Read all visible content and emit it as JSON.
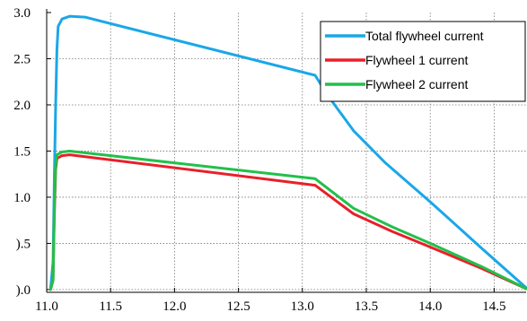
{
  "chart_data": {
    "type": "line",
    "title": "",
    "xlabel": "",
    "ylabel": "",
    "xlim": [
      11.0,
      14.75
    ],
    "ylim": [
      -0.03,
      3.0
    ],
    "grid": true,
    "legend_position": "top-right",
    "x_ticks": [
      {
        "value": 11.0,
        "label": "11.0"
      },
      {
        "value": 11.5,
        "label": "11.5"
      },
      {
        "value": 12.0,
        "label": "12.0"
      },
      {
        "value": 12.5,
        "label": "12.5"
      },
      {
        "value": 13.0,
        "label": "13.0"
      },
      {
        "value": 13.5,
        "label": "13.5"
      },
      {
        "value": 14.0,
        "label": "14.0"
      },
      {
        "value": 14.5,
        "label": "14.5"
      }
    ],
    "y_ticks": [
      {
        "value": 0.0,
        "label": ").0"
      },
      {
        "value": 0.5,
        "label": ").5"
      },
      {
        "value": 1.0,
        "label": "1.0"
      },
      {
        "value": 1.5,
        "label": "1.5"
      },
      {
        "value": 2.0,
        "label": "2.0"
      },
      {
        "value": 2.5,
        "label": "2.5"
      },
      {
        "value": 3.0,
        "label": "3.0"
      }
    ],
    "series": [
      {
        "name": "Total flywheel current",
        "color": "#1aa7e8",
        "points": [
          [
            11.03,
            0.0
          ],
          [
            11.05,
            0.3
          ],
          [
            11.06,
            1.2
          ],
          [
            11.07,
            2.0
          ],
          [
            11.08,
            2.6
          ],
          [
            11.09,
            2.85
          ],
          [
            11.12,
            2.93
          ],
          [
            11.18,
            2.96
          ],
          [
            11.3,
            2.95
          ],
          [
            13.1,
            2.32
          ],
          [
            13.2,
            2.1
          ],
          [
            13.4,
            1.72
          ],
          [
            13.65,
            1.37
          ],
          [
            14.0,
            0.95
          ],
          [
            14.4,
            0.45
          ],
          [
            14.75,
            0.02
          ]
        ]
      },
      {
        "name": "Flywheel 1 current",
        "color": "#e8202a",
        "points": [
          [
            11.03,
            0.0
          ],
          [
            11.05,
            0.1
          ],
          [
            11.06,
            0.8
          ],
          [
            11.07,
            1.3
          ],
          [
            11.08,
            1.42
          ],
          [
            11.12,
            1.45
          ],
          [
            11.18,
            1.46
          ],
          [
            13.1,
            1.13
          ],
          [
            13.4,
            0.82
          ],
          [
            13.7,
            0.63
          ],
          [
            14.0,
            0.46
          ],
          [
            14.4,
            0.23
          ],
          [
            14.75,
            0.01
          ]
        ]
      },
      {
        "name": "Flywheel 2 current",
        "color": "#22c04a",
        "points": [
          [
            11.03,
            0.0
          ],
          [
            11.05,
            0.1
          ],
          [
            11.06,
            0.9
          ],
          [
            11.07,
            1.35
          ],
          [
            11.08,
            1.46
          ],
          [
            11.12,
            1.49
          ],
          [
            11.18,
            1.5
          ],
          [
            13.1,
            1.2
          ],
          [
            13.4,
            0.88
          ],
          [
            13.7,
            0.68
          ],
          [
            14.0,
            0.5
          ],
          [
            14.4,
            0.25
          ],
          [
            14.75,
            0.01
          ]
        ]
      }
    ]
  }
}
